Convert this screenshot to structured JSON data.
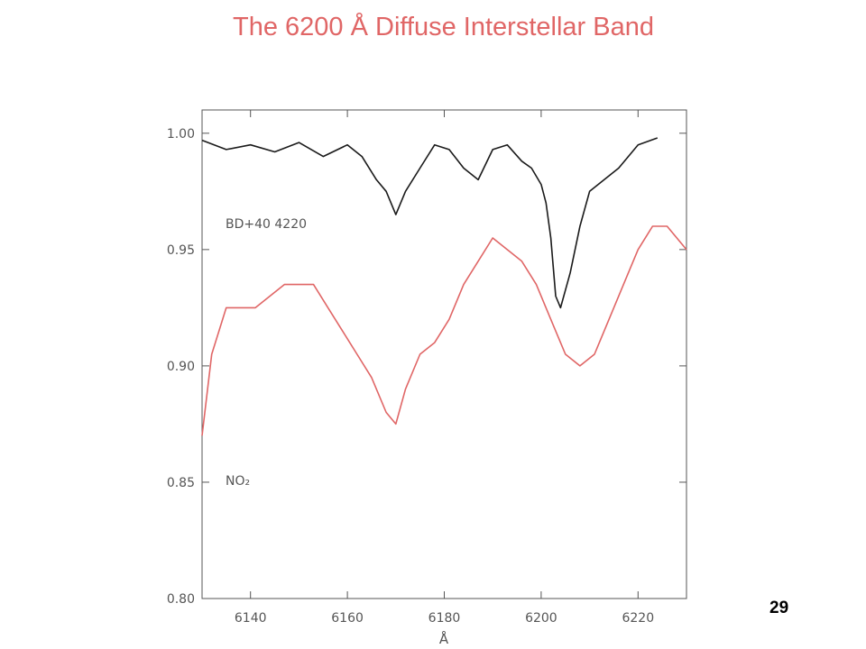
{
  "slide": {
    "title": "The 6200 Å Diffuse Interstellar Band",
    "number": "29"
  },
  "colors": {
    "title": "#e06666",
    "series_stellar": "#1a1a1a",
    "series_lab": "#e06666",
    "frame": "#555555"
  },
  "chart_data": {
    "type": "line",
    "title": "",
    "xlabel": "Å",
    "ylabel": "",
    "xlim": [
      6130,
      6230
    ],
    "ylim": [
      0.8,
      1.01
    ],
    "x_ticks": [
      6140,
      6160,
      6180,
      6200,
      6220
    ],
    "x_tick_labels": [
      "6140",
      "6160",
      "6180",
      "6200",
      "6220"
    ],
    "y_ticks": [
      0.8,
      0.85,
      0.9,
      0.95,
      1.0
    ],
    "y_tick_labels": [
      "0.80",
      "0.85",
      "0.90",
      "0.95",
      "1.00"
    ],
    "grid": false,
    "legend": "none",
    "series": [
      {
        "name": "BD+40  4220",
        "x": [
          6130,
          6135,
          6140,
          6145,
          6150,
          6155,
          6160,
          6163,
          6166,
          6168,
          6170,
          6172,
          6175,
          6178,
          6181,
          6184,
          6187,
          6190,
          6193,
          6196,
          6198,
          6200,
          6201,
          6202,
          6203,
          6204,
          6206,
          6208,
          6210,
          6213,
          6216,
          6220,
          6224
        ],
        "y": [
          0.997,
          0.993,
          0.995,
          0.992,
          0.996,
          0.99,
          0.995,
          0.99,
          0.98,
          0.975,
          0.965,
          0.975,
          0.985,
          0.995,
          0.993,
          0.985,
          0.98,
          0.993,
          0.995,
          0.988,
          0.985,
          0.978,
          0.97,
          0.955,
          0.93,
          0.925,
          0.94,
          0.96,
          0.975,
          0.98,
          0.985,
          0.995,
          0.998
        ]
      },
      {
        "name": "NO₂",
        "x": [
          6130,
          6132,
          6135,
          6138,
          6141,
          6144,
          6147,
          6150,
          6153,
          6156,
          6159,
          6162,
          6165,
          6168,
          6170,
          6172,
          6175,
          6178,
          6181,
          6184,
          6187,
          6190,
          6193,
          6196,
          6199,
          6202,
          6205,
          6208,
          6211,
          6214,
          6217,
          6220,
          6223,
          6226,
          6230
        ],
        "y": [
          0.87,
          0.905,
          0.925,
          0.925,
          0.925,
          0.93,
          0.935,
          0.935,
          0.935,
          0.925,
          0.915,
          0.905,
          0.895,
          0.88,
          0.875,
          0.89,
          0.905,
          0.91,
          0.92,
          0.935,
          0.945,
          0.955,
          0.95,
          0.945,
          0.935,
          0.92,
          0.905,
          0.9,
          0.905,
          0.92,
          0.935,
          0.95,
          0.96,
          0.96,
          0.95
        ]
      }
    ]
  }
}
